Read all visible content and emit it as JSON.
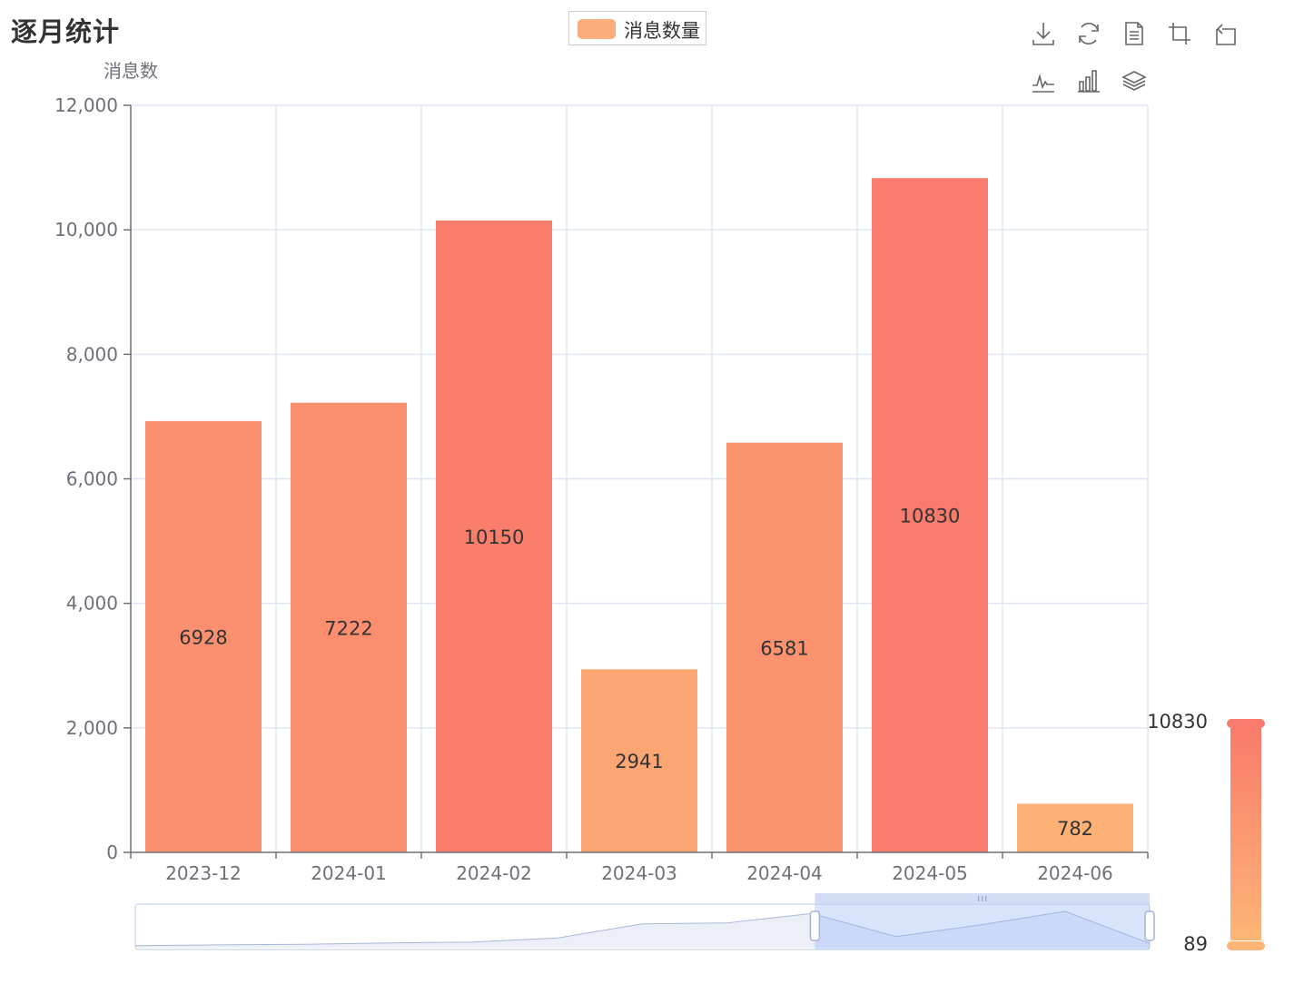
{
  "title": "逐月统计",
  "legend": {
    "label": "消息数量",
    "color": "#fdae78"
  },
  "toolbox": [
    "download-icon",
    "refresh-icon",
    "data-view-icon",
    "zoom-icon",
    "zoom-reset-icon",
    "line-chart-icon",
    "bar-chart-icon",
    "stack-icon"
  ],
  "chart_data": {
    "type": "bar",
    "ylabel": "消息数",
    "ylim": [
      0,
      12000
    ],
    "yticks": [
      "0",
      "2,000",
      "4,000",
      "6,000",
      "8,000",
      "10,000",
      "12,000"
    ],
    "categories": [
      "2023-12",
      "2024-01",
      "2024-02",
      "2024-03",
      "2024-04",
      "2024-05",
      "2024-06"
    ],
    "series": [
      {
        "name": "消息数量",
        "values": [
          6928,
          7222,
          10150,
          2941,
          6581,
          10830,
          782
        ]
      }
    ],
    "grid": true,
    "legend_position": "top-center",
    "visual_map": {
      "max": "10830",
      "min": "89",
      "color_high": "#f97b6b",
      "color_low": "#fdb577"
    },
    "data_zoom": {
      "start_fraction": 0.67,
      "end_fraction": 1.0,
      "overview_values": [
        89,
        300,
        500,
        900,
        1200,
        2500,
        6928,
        7222,
        10150,
        2941,
        6581,
        10830,
        782
      ]
    }
  }
}
